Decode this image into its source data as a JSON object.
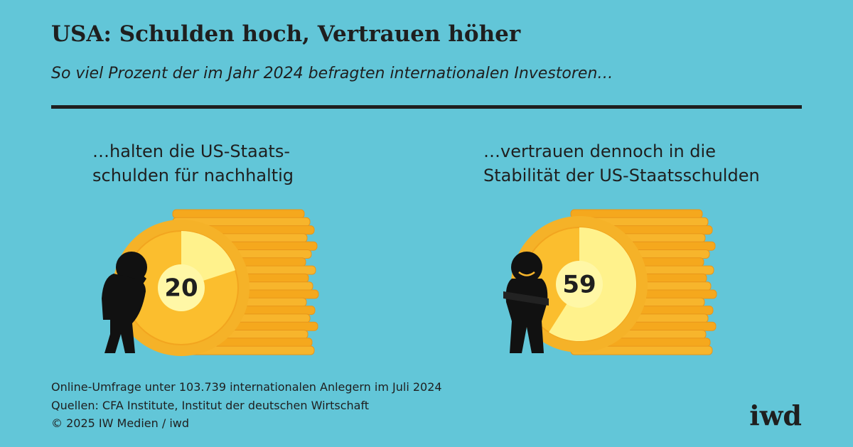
{
  "header": {
    "title": "USA: Schulden hoch, Vertrauen höher",
    "subtitle": "So viel Prozent der im Jahr 2024 befragten internationalen Investoren…"
  },
  "panels": [
    {
      "label": [
        "…halten die US-Staats-",
        "schulden für nachhaltig"
      ],
      "value": 20
    },
    {
      "label": [
        "…vertrauen dennoch in die",
        "Stabilität der US-Staatsschulden"
      ],
      "value": 59
    }
  ],
  "footer": [
    "Online-Umfrage unter 103.739 internationalen Anlegern im Juli 2024",
    "Quellen: CFA Institute, Institut der deutschen Wirtschaft",
    "© 2025 IW Medien / iwd"
  ],
  "logo": "iwd"
}
